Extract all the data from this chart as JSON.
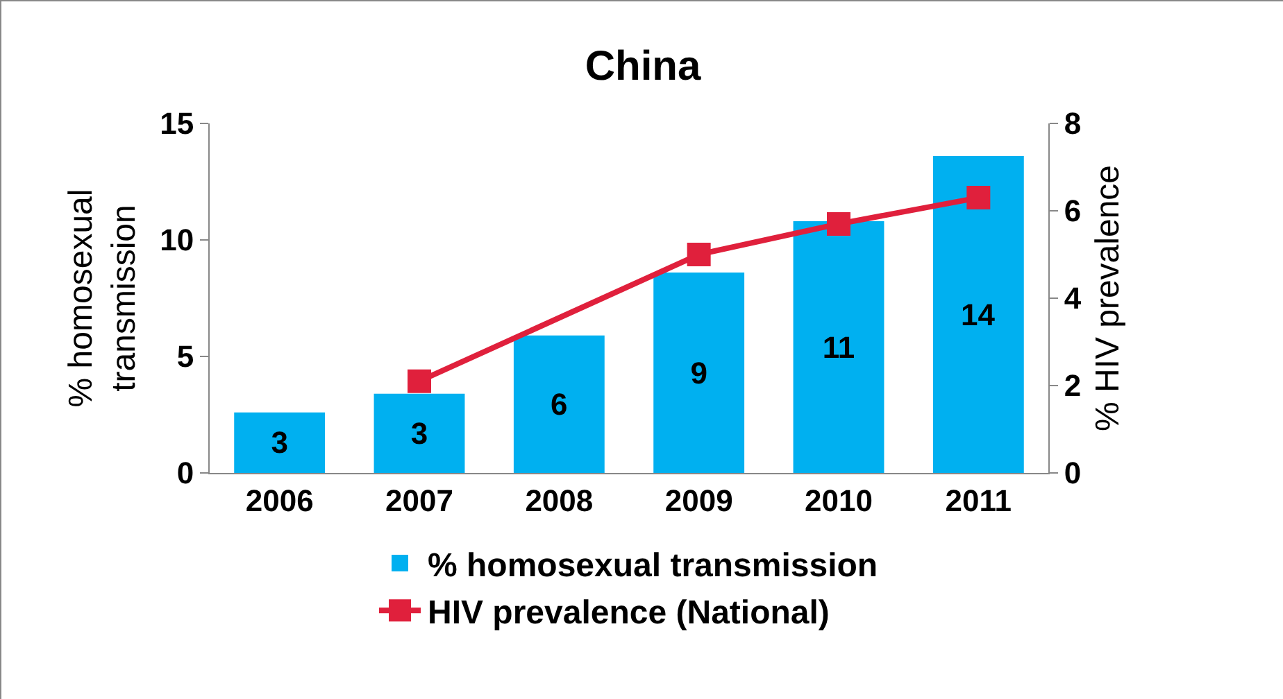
{
  "chart_data": {
    "type": "bar",
    "title": "China",
    "categories": [
      "2006",
      "2007",
      "2008",
      "2009",
      "2010",
      "2011"
    ],
    "series": [
      {
        "name": "% homosexual transmission",
        "color": "#00b0f0",
        "values": [
          2.6,
          3.4,
          5.9,
          8.6,
          10.8,
          13.6
        ],
        "value_labels": [
          "3",
          "3",
          "6",
          "9",
          "11",
          "14"
        ]
      },
      {
        "name": "HIV prevalence (National)",
        "type": "line",
        "axis": "y2",
        "color": "#e0203c",
        "values": [
          null,
          2.1,
          null,
          5.0,
          5.7,
          6.3
        ]
      }
    ],
    "ylabel": "% homosexual transmission",
    "y2label": "% HIV prevalence",
    "ylim": [
      0,
      15
    ],
    "yticks": [
      0,
      5,
      10,
      15
    ],
    "y2lim": [
      0,
      8
    ],
    "y2ticks": [
      0,
      2,
      4,
      6,
      8
    ],
    "grid": false,
    "legend": "bottom",
    "marker": "square"
  }
}
